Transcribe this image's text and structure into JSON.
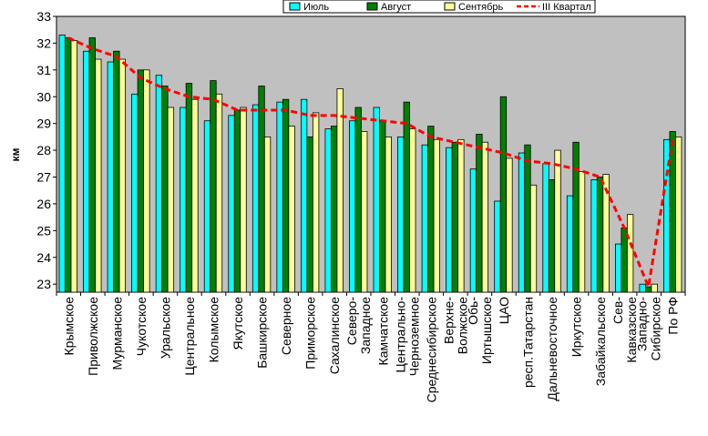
{
  "chart_data": {
    "type": "bar",
    "ylabel": "км",
    "ylim": [
      22.7,
      33
    ],
    "yticks": [
      23,
      24,
      25,
      26,
      27,
      28,
      29,
      30,
      31,
      32,
      33
    ],
    "grid": false,
    "legend_position": "top-right",
    "categories": [
      "Крымское",
      "Приволжское",
      "Мурманское",
      "Чукотское",
      "Уральское",
      "Центральное",
      "Колымское",
      "Якутское",
      "Башкирское",
      "Северное",
      "Приморское",
      "Сахалинское",
      "Северо-Западное",
      "Камчатское",
      "Центрально-Черноземное",
      "Среднесибирское",
      "Верхне-Волжское",
      "Обь-Иртышское",
      "ЦАО",
      "респ.Татарстан",
      "Дальневосточное",
      "Иркутское",
      "Забайкальское",
      "Сев-Кавказское",
      "Западно-Сибирское",
      "По РФ"
    ],
    "category_lines": [
      [
        "Крымское"
      ],
      [
        "Приволжское"
      ],
      [
        "Мурманское"
      ],
      [
        "Чукотское"
      ],
      [
        "Уральское"
      ],
      [
        "Центральное"
      ],
      [
        "Колымское"
      ],
      [
        "Якутское"
      ],
      [
        "Башкирское"
      ],
      [
        "Северное"
      ],
      [
        "Приморское"
      ],
      [
        "Сахалинское"
      ],
      [
        "Северо-",
        "Западное"
      ],
      [
        "Камчатское"
      ],
      [
        "Центрально-",
        "Черноземное"
      ],
      [
        "Среднесибирское"
      ],
      [
        "Верхне-",
        "Волжское"
      ],
      [
        "Обь-",
        "Иртышское"
      ],
      [
        "ЦАО"
      ],
      [
        "респ.Татарстан"
      ],
      [
        "Дальневосточное"
      ],
      [
        "Иркутское"
      ],
      [
        "Забайкальское"
      ],
      [
        "Сев-",
        "Кавказское"
      ],
      [
        "Западно-",
        "Сибирское"
      ],
      [
        "По РФ"
      ]
    ],
    "series": [
      {
        "name": "Июль",
        "type": "bar",
        "color": "#00FFFF",
        "values": [
          32.3,
          31.7,
          31.3,
          30.1,
          30.8,
          29.6,
          29.1,
          29.3,
          29.7,
          29.8,
          29.9,
          28.8,
          29.1,
          29.6,
          28.5,
          28.2,
          28.1,
          27.3,
          26.1,
          27.9,
          27.5,
          26.3,
          26.9,
          24.5,
          23.0,
          28.4
        ]
      },
      {
        "name": "Август",
        "type": "bar",
        "color": "#008000",
        "values": [
          32.2,
          32.2,
          31.7,
          31.0,
          30.4,
          30.5,
          30.6,
          29.5,
          30.4,
          29.9,
          28.5,
          28.9,
          29.6,
          29.1,
          29.8,
          28.9,
          28.3,
          28.6,
          30.0,
          28.2,
          26.9,
          28.3,
          27.0,
          25.1,
          22.9,
          28.7
        ]
      },
      {
        "name": "Сентябрь",
        "type": "bar",
        "color": "#FFFF99",
        "values": [
          32.1,
          31.4,
          31.4,
          31.0,
          29.6,
          29.9,
          30.1,
          29.6,
          28.5,
          28.9,
          29.4,
          30.3,
          28.7,
          28.5,
          28.8,
          28.4,
          28.4,
          28.3,
          27.7,
          26.7,
          28.0,
          27.2,
          27.1,
          25.6,
          23.0,
          28.5
        ]
      },
      {
        "name": "III Квартал",
        "type": "line",
        "color": "#FF0000",
        "values": [
          32.2,
          31.8,
          31.5,
          30.7,
          30.3,
          30.0,
          29.9,
          29.5,
          29.5,
          29.5,
          29.3,
          29.3,
          29.2,
          29.1,
          29.0,
          28.5,
          28.3,
          28.1,
          27.9,
          27.6,
          27.5,
          27.3,
          27.0,
          25.1,
          22.9,
          28.4
        ]
      }
    ]
  }
}
